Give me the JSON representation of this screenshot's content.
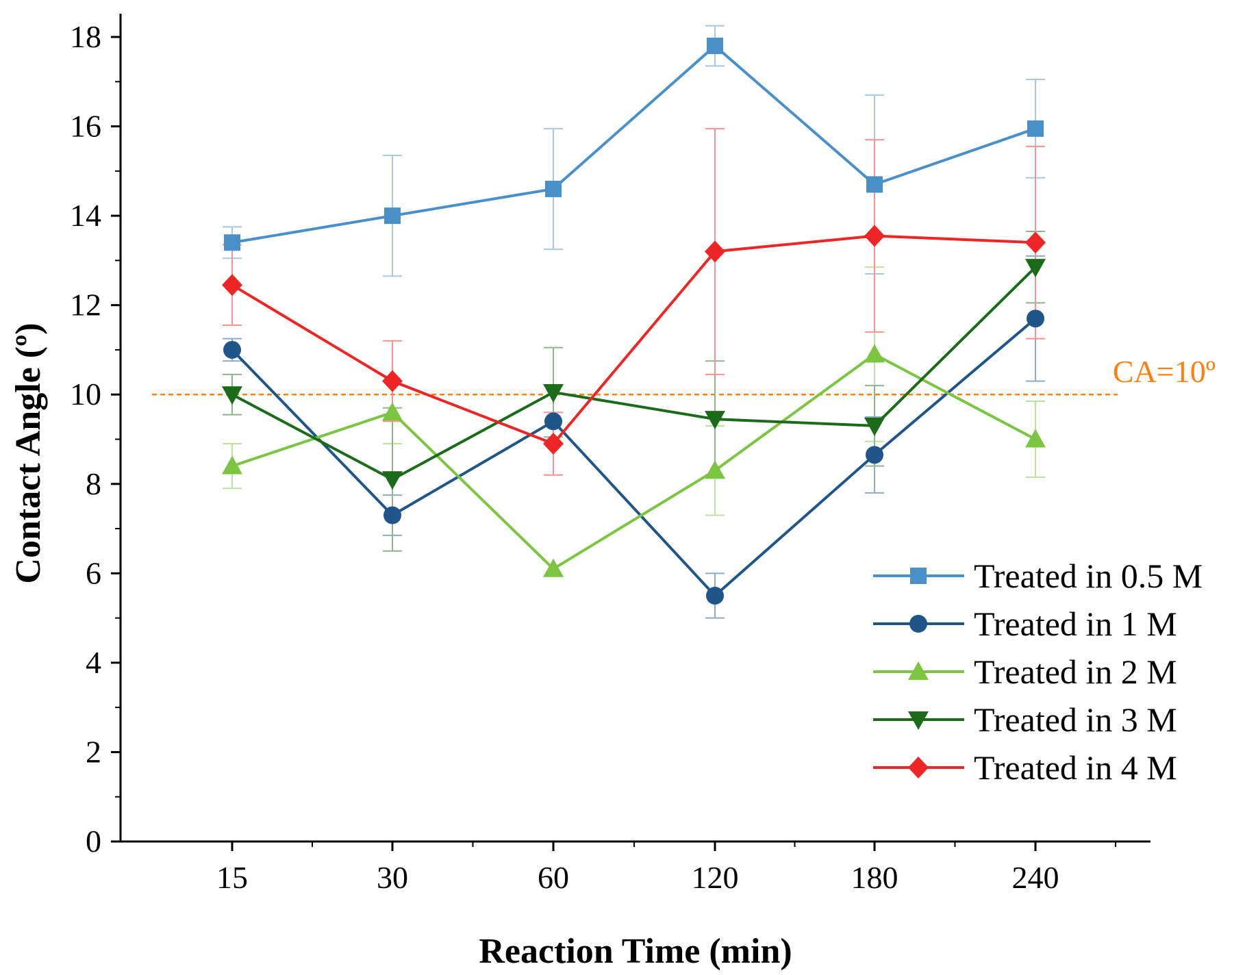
{
  "chart_data": {
    "type": "line",
    "title": "",
    "xlabel": "Reaction Time (min)",
    "ylabel": "Contact Angle (º)",
    "categories": [
      "15",
      "30",
      "60",
      "120",
      "180",
      "240"
    ],
    "ylim": [
      0,
      18
    ],
    "yticks": [
      0,
      2,
      4,
      6,
      8,
      10,
      12,
      14,
      16,
      18
    ],
    "grid": false,
    "legend_position": "bottom-right",
    "reference_line": {
      "y": 10,
      "label": "CA=10º",
      "color": "#ff7f0e"
    },
    "series": [
      {
        "name": "Treated in 0.5 M",
        "color": "#4a90c8",
        "marker": "square",
        "values": [
          13.4,
          14.0,
          14.6,
          17.8,
          14.7,
          15.95
        ],
        "errors": [
          0.35,
          1.35,
          1.35,
          0.45,
          2.0,
          1.1
        ]
      },
      {
        "name": "Treated in 1 M",
        "color": "#1f5588",
        "marker": "circle",
        "values": [
          11.0,
          7.3,
          9.4,
          5.5,
          8.65,
          11.7
        ],
        "errors": [
          0.25,
          0.45,
          0.0,
          0.5,
          0.85,
          1.4
        ]
      },
      {
        "name": "Treated in 2 M",
        "color": "#7cc540",
        "marker": "triangle-up",
        "values": [
          8.4,
          9.6,
          6.1,
          8.3,
          10.9,
          9.0
        ],
        "errors": [
          0.5,
          0.7,
          0.0,
          1.0,
          1.95,
          0.85
        ]
      },
      {
        "name": "Treated in 3 M",
        "color": "#1b6b1b",
        "marker": "triangle-down",
        "values": [
          10.0,
          8.1,
          10.05,
          9.45,
          9.3,
          12.85
        ],
        "errors": [
          0.45,
          1.6,
          1.0,
          1.3,
          0.9,
          0.8
        ]
      },
      {
        "name": "Treated in 4 M",
        "color": "#ee2525",
        "marker": "diamond",
        "values": [
          12.45,
          10.3,
          8.9,
          13.2,
          13.55,
          13.4
        ],
        "errors": [
          0.9,
          0.9,
          0.7,
          2.75,
          2.15,
          2.15
        ]
      }
    ]
  }
}
